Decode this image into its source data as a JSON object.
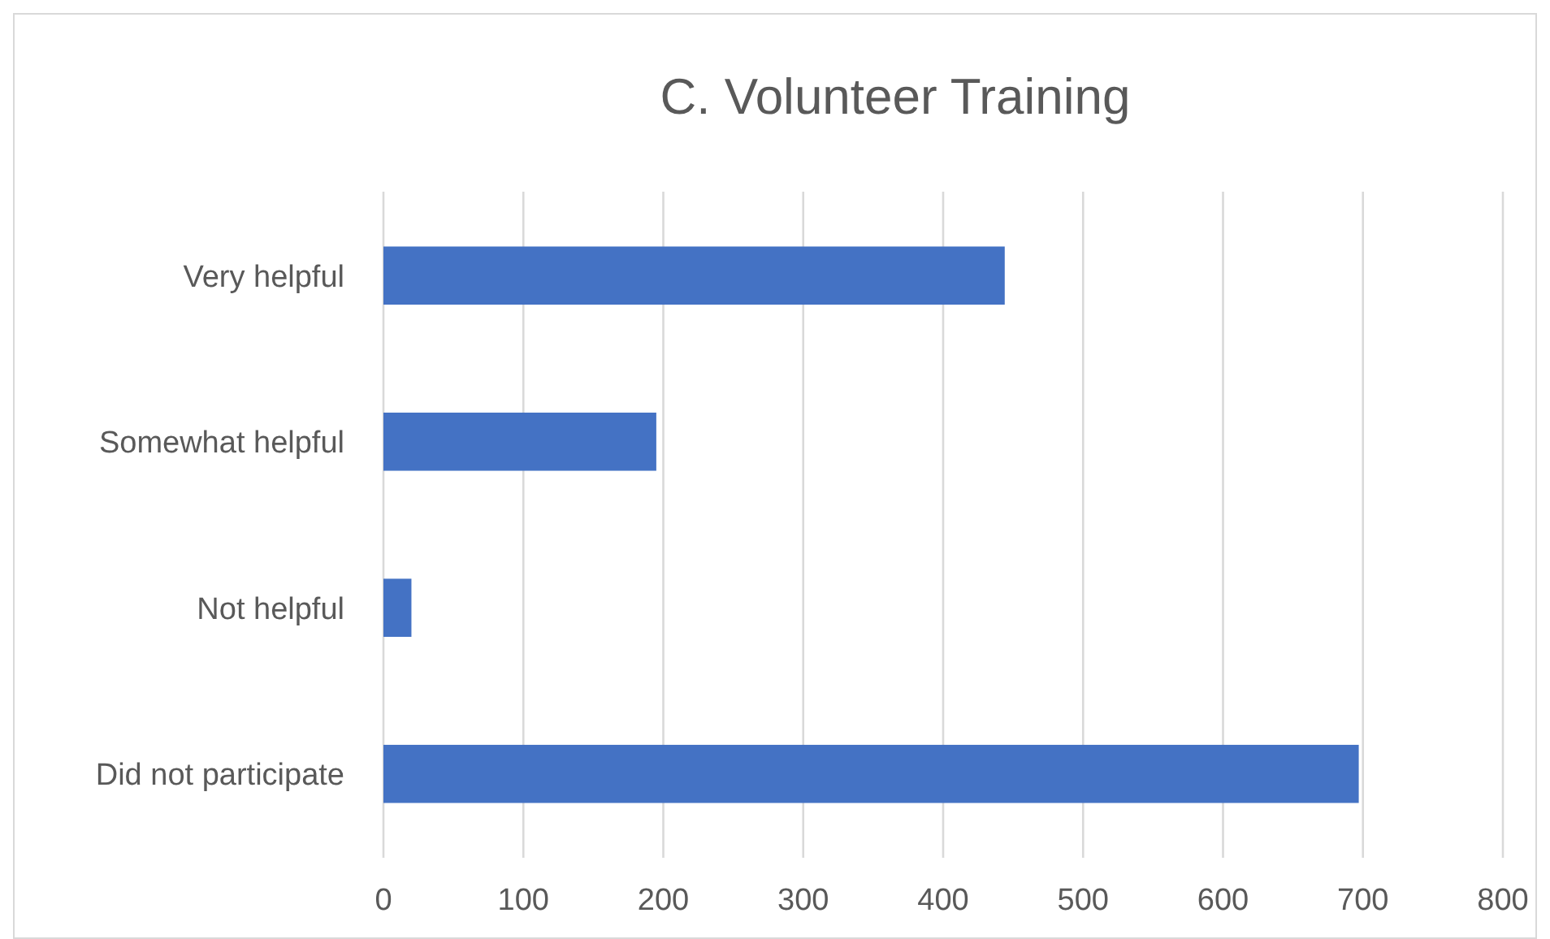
{
  "chart_data": {
    "type": "bar",
    "orientation": "horizontal",
    "title": "C. Volunteer Training",
    "categories": [
      "Very helpful",
      "Somewhat helpful",
      "Not helpful",
      "Did not participate"
    ],
    "values": [
      444,
      195,
      20,
      697
    ],
    "color": "#4472c4",
    "xlim": [
      0,
      800
    ],
    "xticks": [
      0,
      100,
      200,
      300,
      400,
      500,
      600,
      700,
      800
    ],
    "grid": "x"
  }
}
